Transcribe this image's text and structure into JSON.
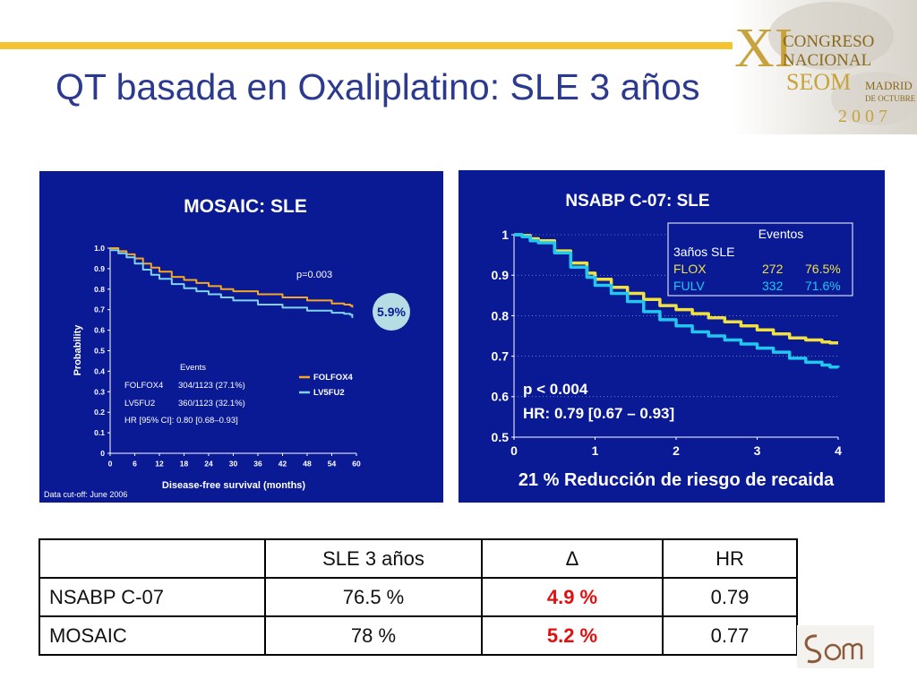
{
  "title": "QT basada en Oxaliplatino: SLE 3 años",
  "congress_logo": {
    "numeral": "XI",
    "line1": "CONGRESO",
    "line2": "NACIONAL",
    "line3": "SEOM",
    "line4": "MADRID",
    "line5": "DE OCTUBRE",
    "year": "2007"
  },
  "colors": {
    "title": "#2b3a8f",
    "panel_bg": "#0a1a94",
    "accent_bar": "#f4c431",
    "highlight_red": "#e01010",
    "folfox_line": "#f5a623",
    "lv5fu2_line": "#7fd3f0",
    "flox_line": "#f0e040",
    "fulv_line": "#20c8f0"
  },
  "chart_data": [
    {
      "type": "line",
      "title": "MOSAIC: SLE",
      "xlabel": "Disease-free survival (months)",
      "ylabel": "Probability",
      "xlim": [
        0,
        60
      ],
      "ylim": [
        0,
        1.0
      ],
      "xticks": [
        "0",
        "6",
        "12",
        "18",
        "24",
        "30",
        "36",
        "42",
        "48",
        "54",
        "60"
      ],
      "yticks": [
        "0",
        "0.1",
        "0.2",
        "0.3",
        "0.4",
        "0.5",
        "0.6",
        "0.7",
        "0.8",
        "0.9",
        "1.0"
      ],
      "annotation": "p=0.003",
      "badge": "5.9%",
      "footnote": "Data cut-off: June 2006",
      "events_header": "Events",
      "events": [
        {
          "arm": "FOLFOX4",
          "value": "304/1123 (27.1%)"
        },
        {
          "arm": "LV5FU2",
          "value": "360/1123 (32.1%)"
        }
      ],
      "hr_text": "HR [95% CI]: 0.80 [0.68–0.93]",
      "legend": [
        "FOLFOX4",
        "LV5FU2"
      ],
      "series": [
        {
          "name": "FOLFOX4",
          "color": "#f5a623",
          "x": [
            0,
            2,
            4,
            6,
            8,
            10,
            12,
            15,
            18,
            21,
            24,
            27,
            30,
            36,
            42,
            48,
            54,
            57,
            58.5,
            59
          ],
          "y": [
            1.0,
            0.985,
            0.97,
            0.95,
            0.925,
            0.905,
            0.885,
            0.86,
            0.845,
            0.83,
            0.815,
            0.8,
            0.79,
            0.775,
            0.76,
            0.745,
            0.73,
            0.725,
            0.72,
            0.71
          ]
        },
        {
          "name": "LV5FU2",
          "color": "#7fd3f0",
          "x": [
            0,
            2,
            4,
            6,
            8,
            10,
            12,
            15,
            18,
            21,
            24,
            27,
            30,
            36,
            42,
            48,
            54,
            57,
            58.5,
            59
          ],
          "y": [
            0.99,
            0.975,
            0.955,
            0.925,
            0.895,
            0.87,
            0.85,
            0.825,
            0.805,
            0.79,
            0.775,
            0.76,
            0.745,
            0.725,
            0.71,
            0.695,
            0.685,
            0.68,
            0.675,
            0.66
          ]
        }
      ]
    },
    {
      "type": "line",
      "title": "NSABP C-07: SLE",
      "xlim": [
        0,
        4
      ],
      "ylim": [
        0.5,
        1.0
      ],
      "xticks": [
        "0",
        "1",
        "2",
        "3",
        "4"
      ],
      "yticks": [
        "0.5",
        "0.6",
        "0.7",
        "0.8",
        "0.9",
        "1"
      ],
      "annotation_p": "p < 0.004",
      "annotation_hr": "HR: 0.79 [0.67 – 0.93]",
      "subtitle": "21 % Reducción de riesgo de recaida",
      "events_box": {
        "header": "Eventos",
        "subheader": "3años SLE",
        "rows": [
          {
            "arm": "FLOX",
            "events": "272",
            "pct": "76.5%"
          },
          {
            "arm": "FULV",
            "events": "332",
            "pct": "71.6%"
          }
        ]
      },
      "series": [
        {
          "name": "FLOX",
          "color": "#f0e040",
          "x": [
            0,
            0.1,
            0.2,
            0.3,
            0.5,
            0.7,
            0.9,
            1.0,
            1.2,
            1.4,
            1.6,
            1.8,
            2.0,
            2.2,
            2.4,
            2.6,
            2.8,
            3.0,
            3.2,
            3.4,
            3.6,
            3.8,
            3.9,
            4.0
          ],
          "y": [
            1.0,
            0.998,
            0.99,
            0.985,
            0.96,
            0.93,
            0.905,
            0.89,
            0.87,
            0.855,
            0.84,
            0.825,
            0.815,
            0.805,
            0.795,
            0.785,
            0.775,
            0.765,
            0.755,
            0.745,
            0.74,
            0.735,
            0.733,
            0.733
          ]
        },
        {
          "name": "FULV",
          "color": "#20c8f0",
          "x": [
            0,
            0.1,
            0.2,
            0.3,
            0.5,
            0.7,
            0.9,
            1.0,
            1.2,
            1.4,
            1.6,
            1.8,
            2.0,
            2.2,
            2.4,
            2.6,
            2.8,
            3.0,
            3.2,
            3.4,
            3.6,
            3.8,
            3.9,
            4.0
          ],
          "y": [
            1.0,
            0.995,
            0.985,
            0.98,
            0.955,
            0.92,
            0.895,
            0.875,
            0.855,
            0.835,
            0.81,
            0.79,
            0.775,
            0.76,
            0.75,
            0.74,
            0.73,
            0.72,
            0.71,
            0.695,
            0.685,
            0.678,
            0.673,
            0.672
          ]
        }
      ]
    }
  ],
  "table": {
    "headers": [
      "",
      "SLE 3 años",
      "Δ",
      "HR"
    ],
    "rows": [
      {
        "study": "NSABP C-07",
        "sle": "76.5 %",
        "delta": "4.9 %",
        "hr": "0.79"
      },
      {
        "study": "MOSAIC",
        "sle": "78 %",
        "delta": "5.2 %",
        "hr": "0.77"
      }
    ]
  }
}
